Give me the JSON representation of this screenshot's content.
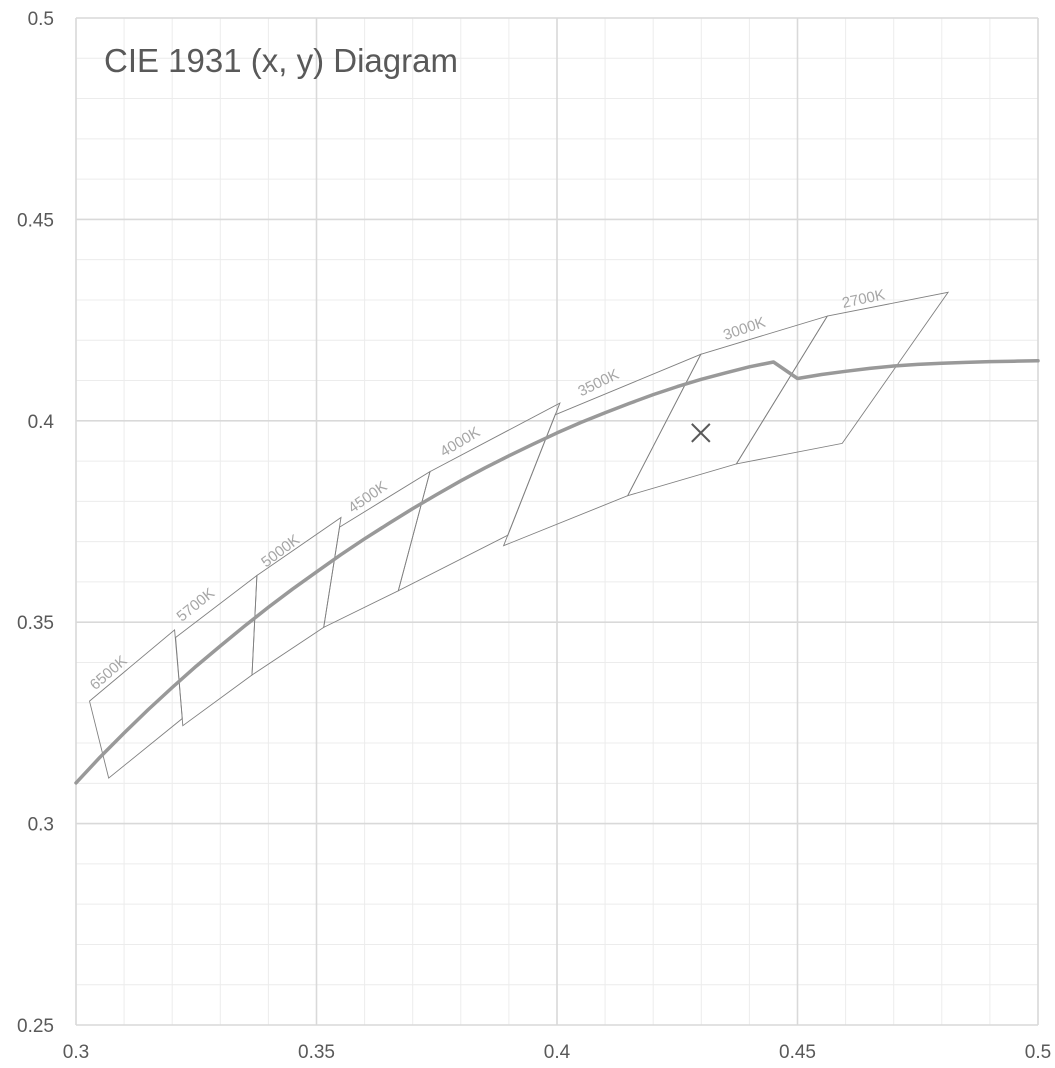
{
  "chart_data": {
    "type": "line",
    "title": "CIE 1931 (x, y) Diagram",
    "xlabel": "",
    "ylabel": "",
    "xlim": [
      0.3,
      0.5
    ],
    "ylim": [
      0.25,
      0.5
    ],
    "x_major_ticks": [
      0.3,
      0.35,
      0.4,
      0.45,
      0.5
    ],
    "y_major_ticks": [
      0.25,
      0.3,
      0.35,
      0.4,
      0.45,
      0.5
    ],
    "x_tick_labels": [
      "0.3",
      "0.35",
      "0.4",
      "0.45",
      "0.5"
    ],
    "y_tick_labels": [
      "0.25",
      "0.3",
      "0.35",
      "0.4",
      "0.45",
      "0.5"
    ],
    "minor_step": 0.01,
    "grid": true,
    "colors": {
      "grid_major": "#d9d9d9",
      "grid_minor": "#ececec",
      "planckian": "#999999",
      "quadrangle": "#808080",
      "cct_label": "#a6a6a6",
      "marker": "#595959",
      "text": "#595959"
    },
    "planckian_locus": {
      "x": [
        0.3,
        0.305,
        0.31,
        0.315,
        0.32,
        0.325,
        0.33,
        0.335,
        0.34,
        0.345,
        0.35,
        0.355,
        0.36,
        0.365,
        0.37,
        0.375,
        0.38,
        0.385,
        0.39,
        0.395,
        0.4,
        0.405,
        0.41,
        0.415,
        0.42,
        0.425,
        0.43,
        0.435,
        0.44,
        0.445,
        0.45,
        0.455,
        0.46,
        0.465,
        0.47,
        0.475,
        0.48,
        0.485,
        0.49,
        0.495,
        0.5
      ],
      "y": [
        0.3101,
        0.3165,
        0.3225,
        0.3283,
        0.3338,
        0.3391,
        0.3441,
        0.349,
        0.3537,
        0.3582,
        0.3625,
        0.3667,
        0.3707,
        0.3745,
        0.3782,
        0.3817,
        0.3851,
        0.3883,
        0.3913,
        0.3942,
        0.397,
        0.3996,
        0.402,
        0.4043,
        0.4065,
        0.4085,
        0.4103,
        0.4119,
        0.4134,
        0.4146,
        0.4105,
        0.4115,
        0.4123,
        0.413,
        0.4136,
        0.414,
        0.4143,
        0.4145,
        0.4147,
        0.4148,
        0.4149
      ]
    },
    "quadrangles": [
      {
        "label": "6500K",
        "points": [
          [
            0.3028,
            0.3304
          ],
          [
            0.3205,
            0.3481
          ],
          [
            0.3221,
            0.3261
          ],
          [
            0.3068,
            0.3113
          ]
        ]
      },
      {
        "label": "5700K",
        "points": [
          [
            0.3207,
            0.3462
          ],
          [
            0.3376,
            0.3616
          ],
          [
            0.3366,
            0.3369
          ],
          [
            0.3222,
            0.3243
          ]
        ]
      },
      {
        "label": "5000K",
        "points": [
          [
            0.3376,
            0.3616
          ],
          [
            0.3551,
            0.376
          ],
          [
            0.3515,
            0.3487
          ],
          [
            0.3366,
            0.3369
          ]
        ]
      },
      {
        "label": "4500K",
        "points": [
          [
            0.3548,
            0.3736
          ],
          [
            0.3736,
            0.3874
          ],
          [
            0.367,
            0.3578
          ],
          [
            0.3515,
            0.3487
          ]
        ]
      },
      {
        "label": "4000K",
        "points": [
          [
            0.3736,
            0.3874
          ],
          [
            0.4006,
            0.4044
          ],
          [
            0.3898,
            0.3716
          ],
          [
            0.367,
            0.3578
          ]
        ]
      },
      {
        "label": "3500K",
        "points": [
          [
            0.3996,
            0.4015
          ],
          [
            0.4299,
            0.4165
          ],
          [
            0.4147,
            0.3814
          ],
          [
            0.3889,
            0.369
          ]
        ]
      },
      {
        "label": "3000K",
        "points": [
          [
            0.4299,
            0.4165
          ],
          [
            0.4562,
            0.426
          ],
          [
            0.4373,
            0.3893
          ],
          [
            0.4147,
            0.3814
          ]
        ]
      },
      {
        "label": "2700K",
        "points": [
          [
            0.4562,
            0.426
          ],
          [
            0.4813,
            0.4319
          ],
          [
            0.4593,
            0.3944
          ],
          [
            0.4373,
            0.3893
          ]
        ]
      }
    ],
    "cct_labels": [
      {
        "text": "6500K",
        "x": 0.304,
        "y": 0.333
      },
      {
        "text": "5700K",
        "x": 0.322,
        "y": 0.35
      },
      {
        "text": "5000K",
        "x": 0.3395,
        "y": 0.3635
      },
      {
        "text": "4500K",
        "x": 0.3575,
        "y": 0.377
      },
      {
        "text": "4000K",
        "x": 0.3765,
        "y": 0.391
      },
      {
        "text": "3500K",
        "x": 0.405,
        "y": 0.406
      },
      {
        "text": "3000K",
        "x": 0.435,
        "y": 0.42
      },
      {
        "text": "2700K",
        "x": 0.4595,
        "y": 0.428
      }
    ],
    "marker": {
      "x": 0.4299,
      "y": 0.397
    }
  }
}
